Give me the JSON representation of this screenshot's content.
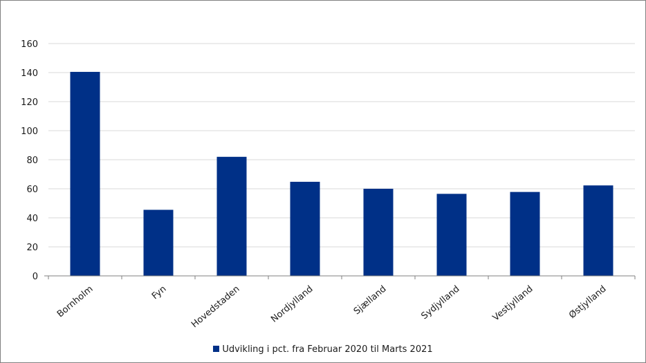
{
  "chart_data": {
    "type": "bar",
    "categories": [
      "Bornholm",
      "Fyn",
      "Hovedstaden",
      "Nordjylland",
      "Sjælland",
      "Sydjylland",
      "Vestjylland",
      "Østjylland"
    ],
    "series": [
      {
        "name": "Udvikling i pct. fra Februar 2020 til Marts 2021",
        "values": [
          140.5,
          45.5,
          82,
          64.8,
          60,
          56.5,
          57.8,
          62.3
        ],
        "color": "#003087"
      }
    ],
    "yticks": [
      "0",
      "20",
      "40",
      "60",
      "80",
      "100",
      "120",
      "140",
      "160"
    ],
    "ylim": [
      0,
      160
    ],
    "grid": true,
    "gridColor": "#d9d9d9",
    "legend_position": "bottom"
  }
}
